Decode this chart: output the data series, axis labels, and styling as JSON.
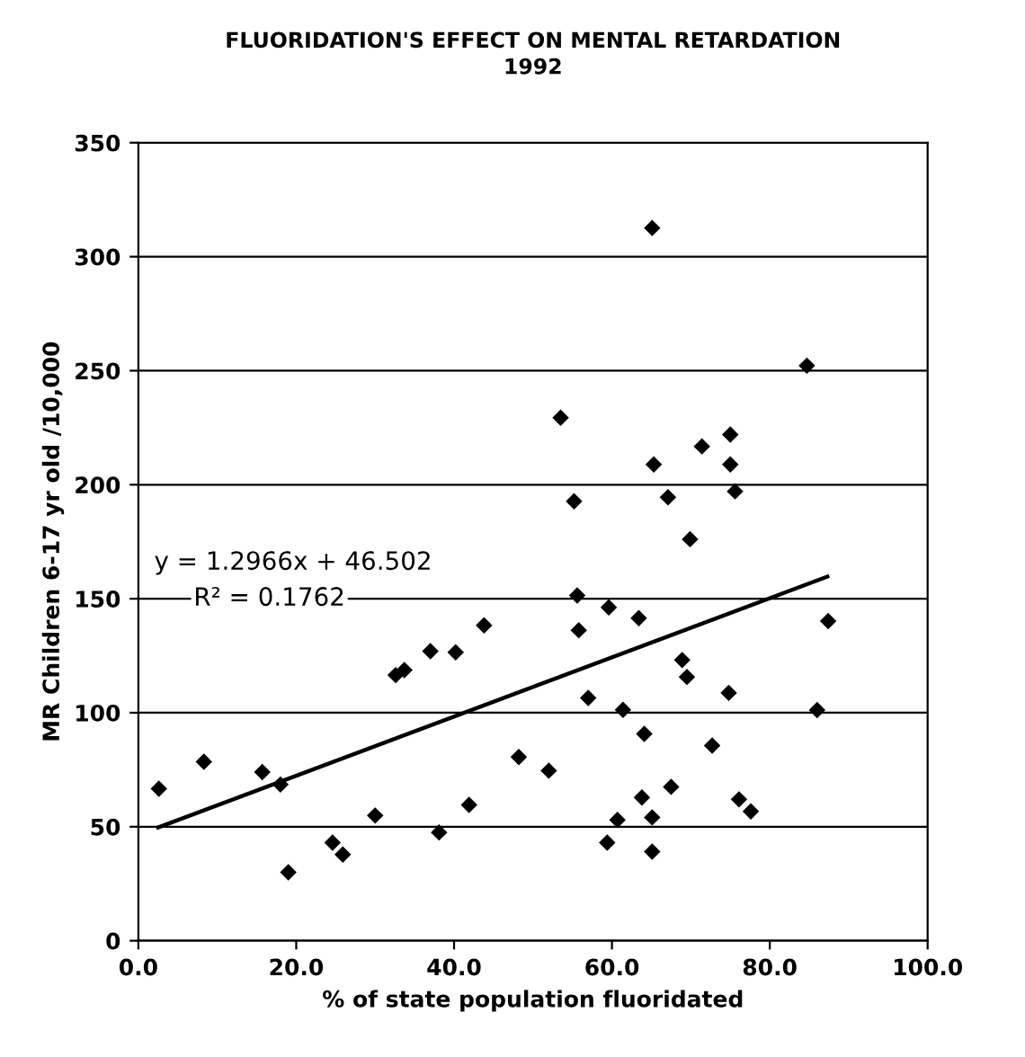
{
  "chart_data": {
    "type": "scatter",
    "title": "FLUORIDATION'S EFFECT ON MENTAL RETARDATION",
    "subtitle": "1992",
    "xlabel": "% of state population fluoridated",
    "ylabel": "MR Children 6-17 yr old /10,000",
    "annotations": [
      "y = 1.2966x + 46.502",
      "R² = 0.1762"
    ],
    "series": [
      {
        "color": "#000000",
        "marker": "diamond",
        "x": [
          2.6,
          8.3,
          15.7,
          18.0,
          19.0,
          24.6,
          25.9,
          30.0,
          38.1,
          41.9,
          32.6,
          33.7,
          37.0,
          40.2,
          43.8,
          48.2,
          52.0,
          65.1,
          84.7,
          53.5,
          71.4,
          75.0,
          65.3,
          75.0,
          55.2,
          67.1,
          75.6,
          69.9,
          55.6,
          59.6,
          63.4,
          55.8,
          87.4,
          68.9,
          69.5,
          74.8,
          57.0,
          61.4,
          86.0,
          64.1,
          72.7,
          67.5,
          63.8,
          65.1,
          60.7,
          76.1,
          77.6,
          59.4,
          65.1
        ],
        "values": [
          66.7,
          78.5,
          74,
          68.5,
          30,
          43,
          37.8,
          54.9,
          47.5,
          59.6,
          116.5,
          118.7,
          127,
          126.5,
          138.3,
          80.6,
          74.6,
          312.6,
          252.2,
          229.4,
          216.8,
          222,
          208.9,
          208.9,
          192.7,
          194.5,
          197.1,
          176.1,
          151.4,
          146.2,
          141.5,
          136.2,
          140.2,
          123.1,
          115.7,
          108.7,
          106.5,
          101.3,
          101.2,
          90.7,
          85.6,
          67.5,
          62.8,
          54.1,
          53,
          62,
          56.7,
          43,
          39.1
        ]
      },
      {
        "type": "line",
        "color": "#000000",
        "marker": "none",
        "line_style": "solid",
        "x": [
          2.5,
          87.3
        ],
        "values": [
          49.7,
          159.7
        ]
      }
    ],
    "xlim": [
      0,
      100
    ],
    "xticks": [
      {
        "value": 0,
        "label": "0.0"
      },
      {
        "value": 20,
        "label": "20.0"
      },
      {
        "value": 40,
        "label": "40.0"
      },
      {
        "value": 60,
        "label": "60.0"
      },
      {
        "value": 80,
        "label": "80.0"
      },
      {
        "value": 100,
        "label": "100.0"
      }
    ],
    "ylim": [
      0,
      350
    ],
    "yticks": [
      0,
      50,
      100,
      150,
      200,
      250,
      300,
      350
    ],
    "grid": "y",
    "legend": false
  }
}
